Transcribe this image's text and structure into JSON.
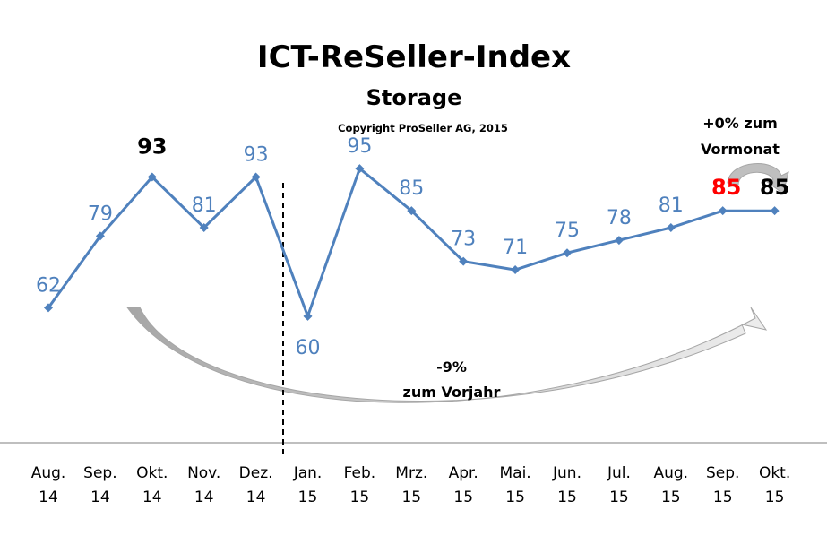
{
  "chart_data": {
    "type": "line",
    "title": "ICT-ReSeller-Index",
    "subtitle": "Storage",
    "copyright": "Copyright ProSeller AG, 2015",
    "categories": [
      [
        "Aug.",
        "14"
      ],
      [
        "Sep.",
        "14"
      ],
      [
        "Okt.",
        "14"
      ],
      [
        "Nov.",
        "14"
      ],
      [
        "Dez.",
        "14"
      ],
      [
        "Jan.",
        "15"
      ],
      [
        "Feb.",
        "15"
      ],
      [
        "Mrz.",
        "15"
      ],
      [
        "Apr.",
        "15"
      ],
      [
        "Mai.",
        "15"
      ],
      [
        "Jun.",
        "15"
      ],
      [
        "Jul.",
        "15"
      ],
      [
        "Aug.",
        "15"
      ],
      [
        "Sep.",
        "15"
      ],
      [
        "Okt.",
        "15"
      ]
    ],
    "series": [
      {
        "name": "Storage",
        "color": "#4f81bd",
        "values": [
          62,
          79,
          93,
          81,
          93,
          60,
          95,
          85,
          73,
          71,
          75,
          78,
          81,
          85,
          85
        ]
      }
    ],
    "highlight_labels": {
      "2": {
        "color": "#000000"
      },
      "13": {
        "color": "#ff0000"
      },
      "14": {
        "color": "#000000"
      }
    },
    "ylim": [
      30,
      115
    ],
    "xlabel": "",
    "ylabel": "",
    "grid": false,
    "divider_after_index": 4,
    "annotations": {
      "month_change": [
        "+0% zum",
        "Vormonat"
      ],
      "year_change": [
        "-9%",
        "zum Vorjahr"
      ]
    },
    "colors": {
      "line": "#4f81bd",
      "arrow": "#bfbfbf",
      "axis": "#7f7f7f"
    }
  }
}
